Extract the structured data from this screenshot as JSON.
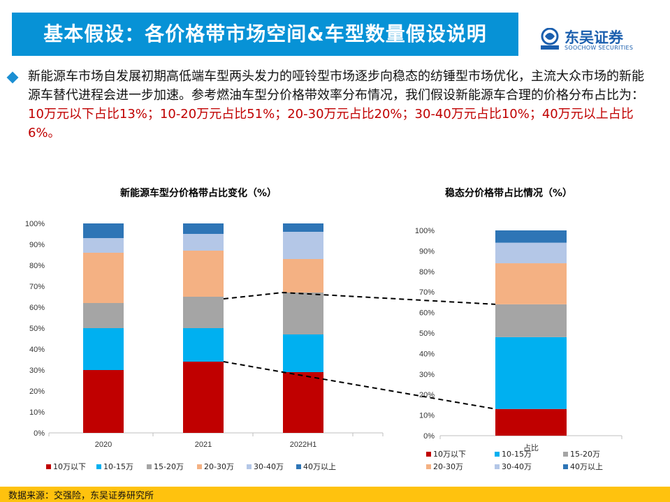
{
  "header": {
    "title": "基本假设：各价格带市场空间&车型数量假设说明",
    "logo_cn": "东吴证券",
    "logo_en": "SOOCHOW SECURITIES"
  },
  "intro": {
    "text_plain": "新能源车市场自发展初期高低端车型两头发力的哑铃型市场逐步向稳态的纺锤型市场优化，主流大众市场的新能源车替代进程会进一步加速。参考燃油车型分价格带效率分布情况，我们假设新能源车合理的价格分布占比为：",
    "text_highlight": "10万元以下占比13%；10-20万元占比51%；20-30万元占比20%；30-40万元占比10%；40万元以上占比6%。"
  },
  "colors": {
    "title_bar": "#0792d6",
    "s1": "#c00000",
    "s2": "#00b0f0",
    "s3": "#a5a5a5",
    "s4": "#f4b183",
    "s5": "#b4c7e7",
    "s6": "#2e75b6",
    "footer": "#ffc20e"
  },
  "chart_data": [
    {
      "type": "bar",
      "stacked": true,
      "title": "新能源车型分价格带占比变化（%）",
      "categories": [
        "2020",
        "2021",
        "2022H1"
      ],
      "series": [
        {
          "name": "10万以下",
          "values": [
            30,
            34,
            29
          ]
        },
        {
          "name": "10-15万",
          "values": [
            20,
            16,
            18
          ]
        },
        {
          "name": "15-20万",
          "values": [
            12,
            15,
            20
          ]
        },
        {
          "name": "20-30万",
          "values": [
            24,
            22,
            16
          ]
        },
        {
          "name": "30-40万",
          "values": [
            7,
            8,
            13
          ]
        },
        {
          "name": "40万以上",
          "values": [
            7,
            5,
            4
          ]
        }
      ],
      "ylim": [
        0,
        100
      ],
      "yticks": [
        "0%",
        "10%",
        "20%",
        "30%",
        "40%",
        "50%",
        "60%",
        "70%",
        "80%",
        "90%",
        "100%"
      ],
      "legend": "bottom"
    },
    {
      "type": "bar",
      "stacked": true,
      "title": "稳态分价格带占比情况（%）",
      "categories": [
        "占比"
      ],
      "series": [
        {
          "name": "10万以下",
          "values": [
            13
          ]
        },
        {
          "name": "10-15万",
          "values": [
            35
          ]
        },
        {
          "name": "15-20万",
          "values": [
            16
          ]
        },
        {
          "name": "20-30万",
          "values": [
            20
          ]
        },
        {
          "name": "30-40万",
          "values": [
            10
          ]
        },
        {
          "name": "40万以上",
          "values": [
            6
          ]
        }
      ],
      "ylim": [
        0,
        100
      ],
      "yticks": [
        "0%",
        "10%",
        "20%",
        "30%",
        "40%",
        "50%",
        "60%",
        "70%",
        "80%",
        "90%",
        "100%"
      ],
      "legend": "bottom"
    }
  ],
  "footer": {
    "source": "数据来源：交强险，东吴证券研究所"
  }
}
